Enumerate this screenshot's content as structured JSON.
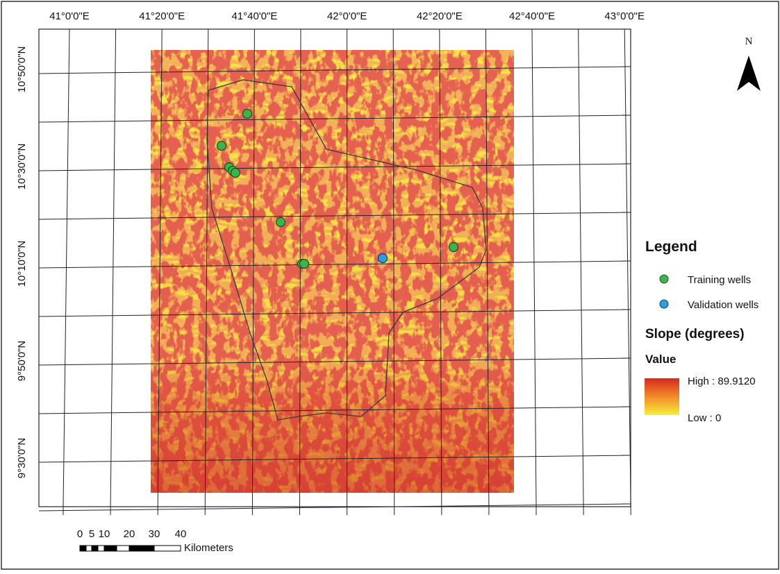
{
  "north": "N",
  "longitude_labels": [
    "41°0'0\"E",
    "41°20'0\"E",
    "41°40'0\"E",
    "42°0'0\"E",
    "42°20'0\"E",
    "42°40'0\"E",
    "43°0'0\"E"
  ],
  "latitude_labels": [
    "10°50'0\"N",
    "10°30'0\"N",
    "10°10'0\"N",
    "9°50'0\"N",
    "9°30'0\"N"
  ],
  "legend": {
    "title": "Legend",
    "items": [
      "Training wells",
      "Validation wells"
    ],
    "layer_title": "Slope (degrees)",
    "field": "Value",
    "high": "High : 89.9120",
    "low": "Low : 0"
  },
  "scale_bar": {
    "labels": [
      "0",
      "5",
      "10",
      "20",
      "30",
      "40"
    ],
    "unit": "Kilometers"
  }
}
